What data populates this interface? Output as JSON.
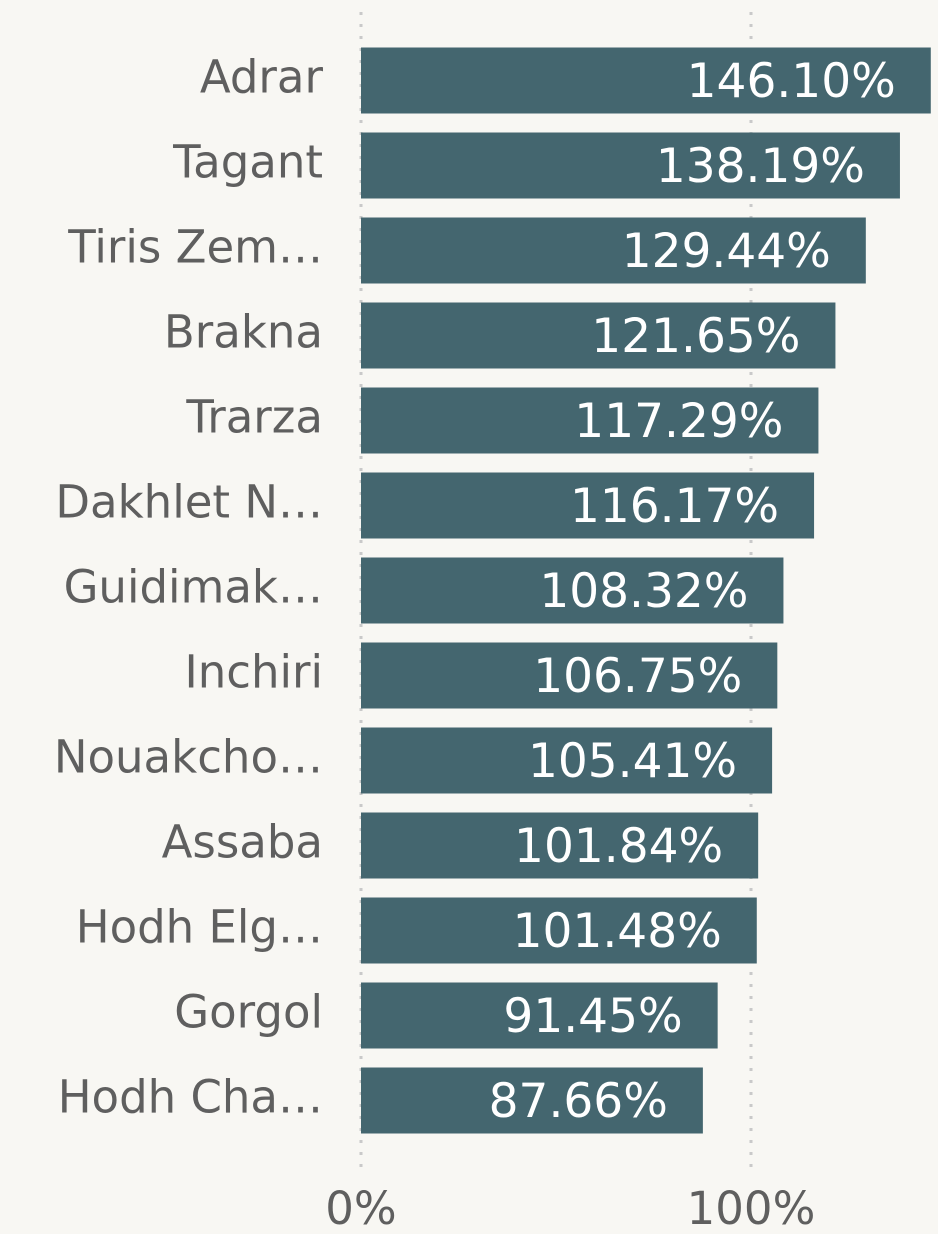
{
  "chart_data": {
    "type": "bar",
    "orientation": "horizontal",
    "categories": [
      "Adrar",
      "Tagant",
      "Tiris Zem…",
      "Brakna",
      "Trarza",
      "Dakhlet N…",
      "Guidimak…",
      "Inchiri",
      "Nouakcho…",
      "Assaba",
      "Hodh Elg…",
      "Gorgol",
      "Hodh Cha…"
    ],
    "values": [
      146.1,
      138.19,
      129.44,
      121.65,
      117.29,
      116.17,
      108.32,
      106.75,
      105.41,
      101.84,
      101.48,
      91.45,
      87.66
    ],
    "value_labels": [
      "146.10%",
      "138.19%",
      "129.44%",
      "121.65%",
      "117.29%",
      "116.17%",
      "108.32%",
      "106.75%",
      "105.41%",
      "101.84%",
      "101.48%",
      "91.45%",
      "87.66%"
    ],
    "color": "#44666f",
    "xlim": [
      0,
      148
    ],
    "xticks": [
      {
        "value": 0,
        "label": "0%"
      },
      {
        "value": 100,
        "label": "100%"
      }
    ],
    "grid": true
  }
}
